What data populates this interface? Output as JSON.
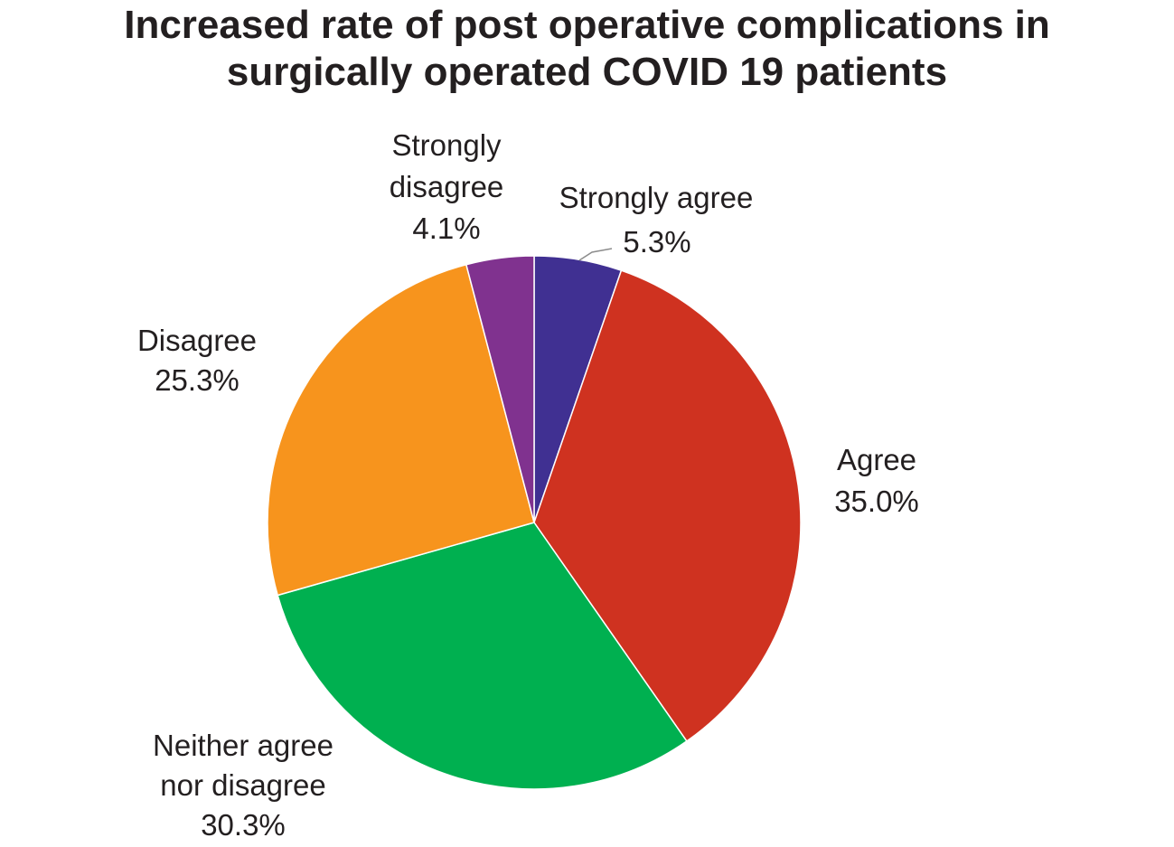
{
  "chart_data": {
    "type": "pie",
    "title_lines": [
      "Increased rate of post operative complications in",
      "surgically operated COVID 19 patients"
    ],
    "slices": [
      {
        "label_lines": [
          "Strongly agree"
        ],
        "value_text": "5.3%",
        "value": 5.3,
        "color": "#403092"
      },
      {
        "label_lines": [
          "Agree"
        ],
        "value_text": "35.0%",
        "value": 35.0,
        "color": "#cf3220"
      },
      {
        "label_lines": [
          "Neither agree",
          "nor disagree"
        ],
        "value_text": "30.3%",
        "value": 30.3,
        "color": "#00b050"
      },
      {
        "label_lines": [
          "Disagree"
        ],
        "value_text": "25.3%",
        "value": 25.3,
        "color": "#f7941d"
      },
      {
        "label_lines": [
          "Strongly",
          "disagree"
        ],
        "value_text": "4.1%",
        "value": 4.1,
        "color": "#80328f"
      }
    ],
    "start_angle": "12 o'clock",
    "direction": "clockwise",
    "legend": "none"
  }
}
